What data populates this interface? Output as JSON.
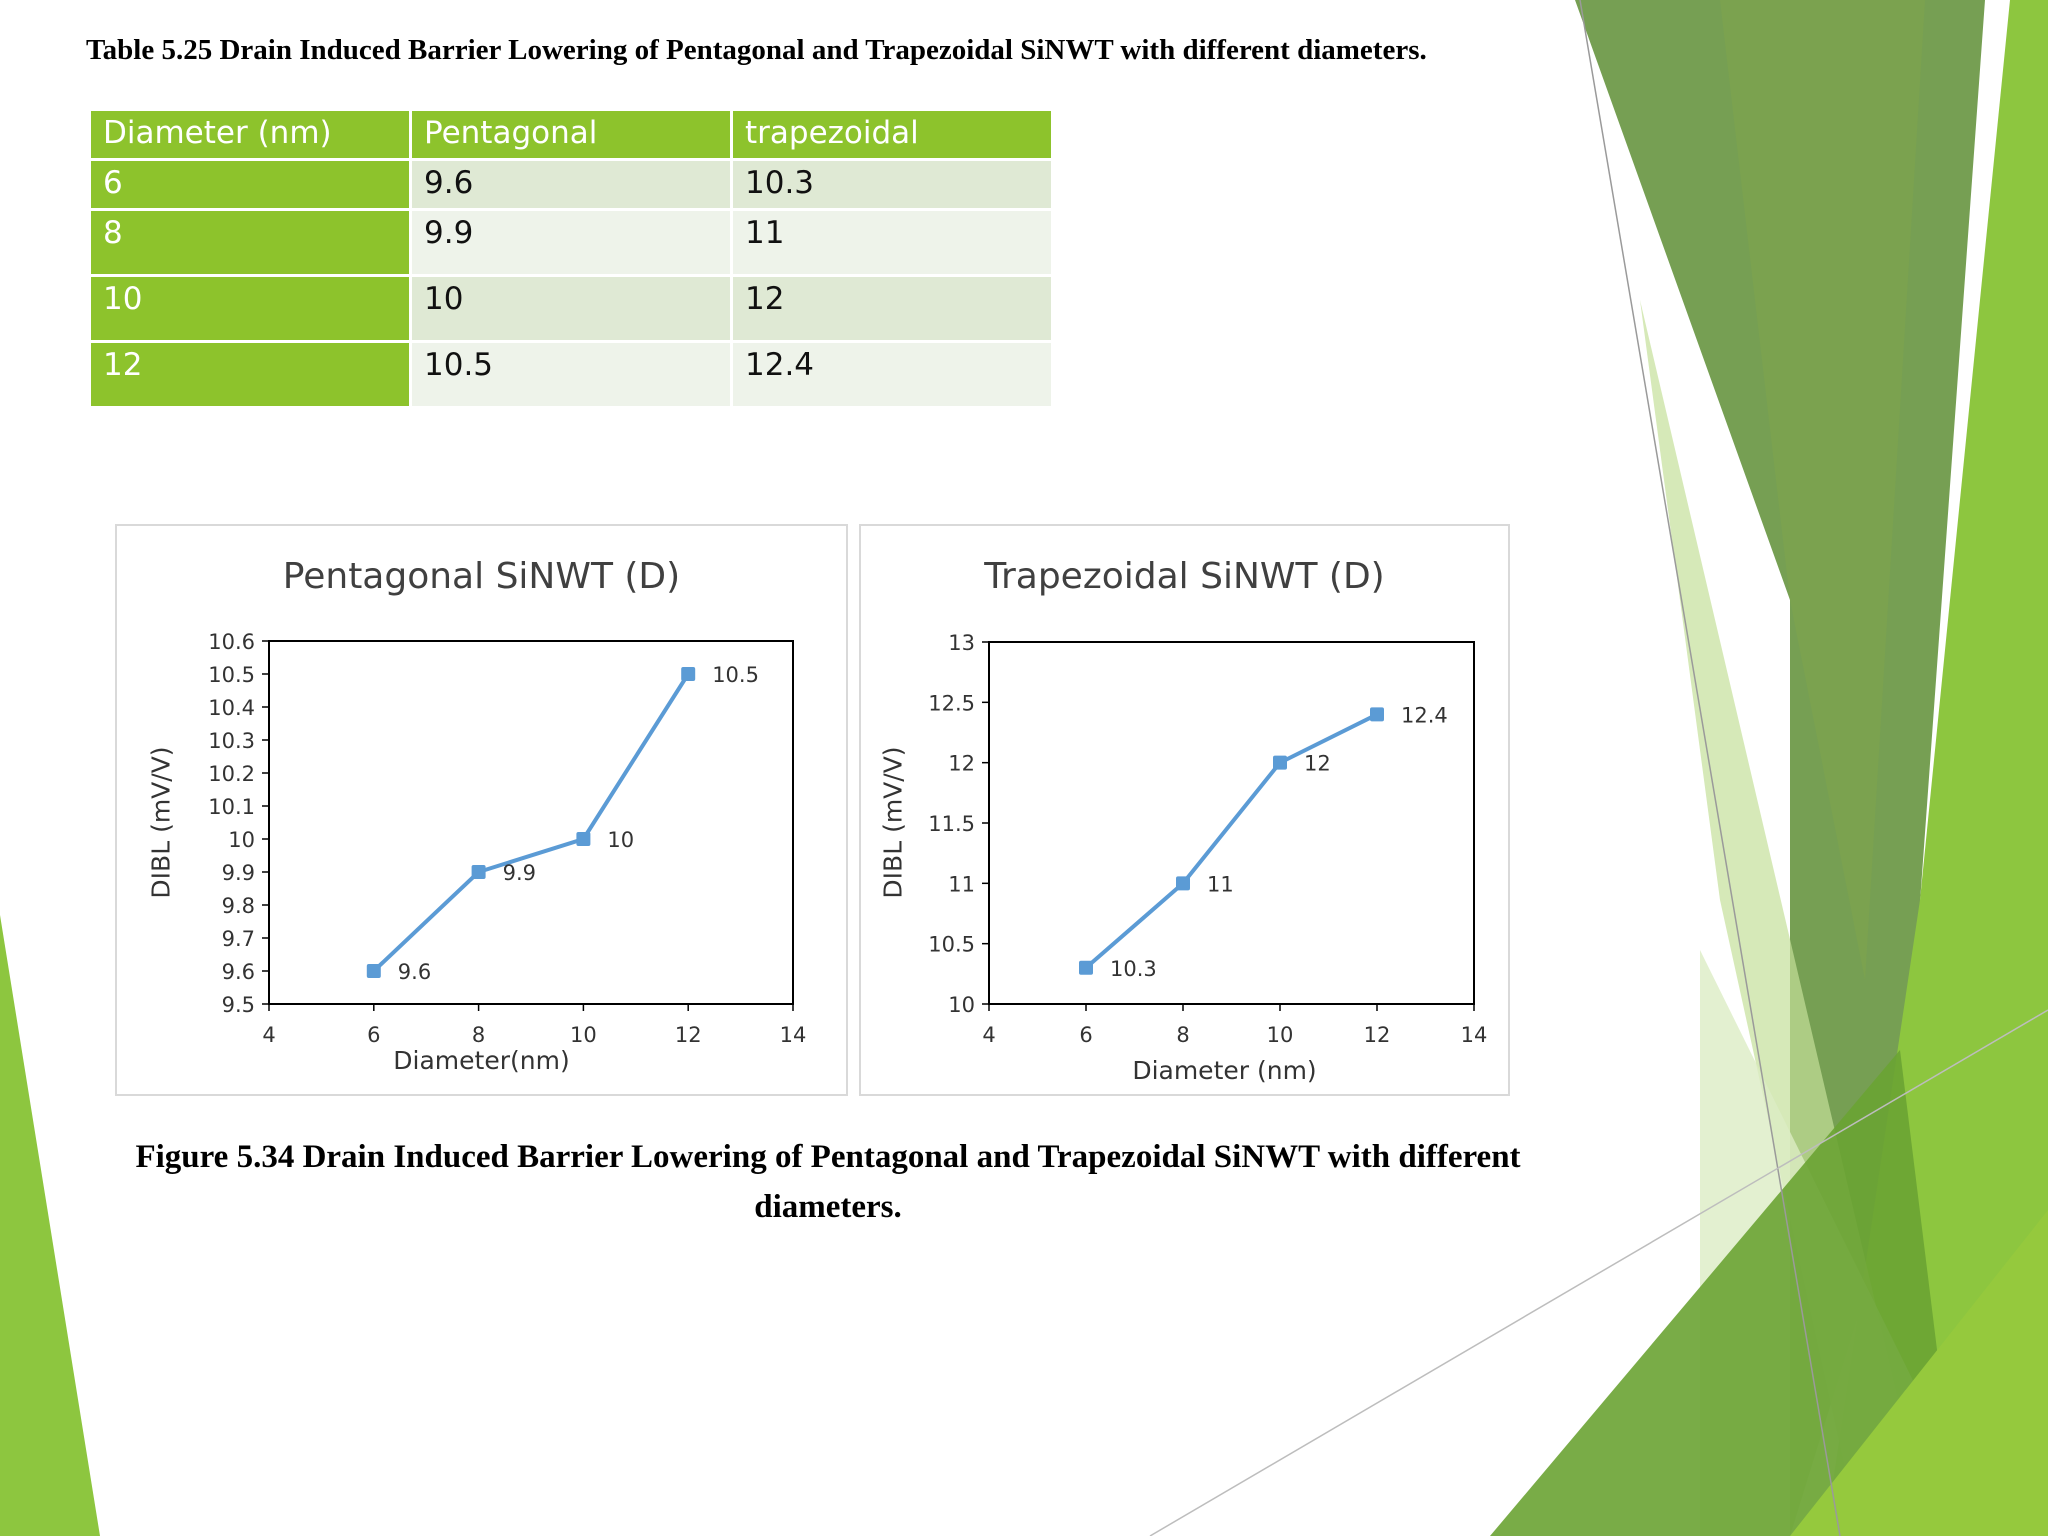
{
  "table_caption": "Table 5.25 Drain Induced Barrier Lowering of Pentagonal and Trapezoidal SiNWT with different diameters.",
  "table": {
    "headers": [
      "Diameter (nm)",
      "Pentagonal",
      "trapezoidal"
    ],
    "rows": [
      [
        "6",
        "9.6",
        "10.3"
      ],
      [
        "8",
        "9.9",
        "11"
      ],
      [
        "10",
        "10",
        "12"
      ],
      [
        "12",
        "10.5",
        "12.4"
      ]
    ]
  },
  "figure_caption": "Figure 5.34 Drain Induced Barrier Lowering of Pentagonal and Trapezoidal SiNWT with different diameters.",
  "colors": {
    "series": "#5b9bd5",
    "header_green": "#8dc32c",
    "band_light": "#dfe9d4",
    "band_lighter": "#eef3ea"
  },
  "chart_data": [
    {
      "type": "line",
      "title": "Pentagonal SiNWT (D)",
      "xlabel": "Diameter(nm)",
      "ylabel": "DIBL (mV/V)",
      "xlim": [
        4,
        14
      ],
      "ylim": [
        9.5,
        10.6
      ],
      "xticks": [
        4,
        6,
        8,
        10,
        12,
        14
      ],
      "yticks": [
        9.5,
        9.6,
        9.7,
        9.8,
        9.9,
        10,
        10.1,
        10.2,
        10.3,
        10.4,
        10.5,
        10.6
      ],
      "ytick_labels": [
        "9.5",
        "9.6",
        "9.7",
        "9.8",
        "9.9",
        "10",
        "10.1",
        "10.2",
        "10.3",
        "10.4",
        "10.5",
        "10.6"
      ],
      "x": [
        6,
        8,
        10,
        12
      ],
      "y": [
        9.6,
        9.9,
        10,
        10.5
      ],
      "data_labels": [
        "9.6",
        "9.9",
        "10",
        "10.5"
      ],
      "grid": false,
      "legend": "none"
    },
    {
      "type": "line",
      "title": "Trapezoidal SiNWT (D)",
      "xlabel": "Diameter (nm)",
      "ylabel": "DIBL (mV/V)",
      "xlim": [
        4,
        14
      ],
      "ylim": [
        10,
        13
      ],
      "xticks": [
        4,
        6,
        8,
        10,
        12,
        14
      ],
      "yticks": [
        10,
        10.5,
        11,
        11.5,
        12,
        12.5,
        13
      ],
      "ytick_labels": [
        "10",
        "10.5",
        "11",
        "11.5",
        "12",
        "12.5",
        "13"
      ],
      "x": [
        6,
        8,
        10,
        12
      ],
      "y": [
        10.3,
        11,
        12,
        12.4
      ],
      "data_labels": [
        "10.3",
        "11",
        "12",
        "12.4"
      ],
      "grid": false,
      "legend": "none"
    }
  ]
}
